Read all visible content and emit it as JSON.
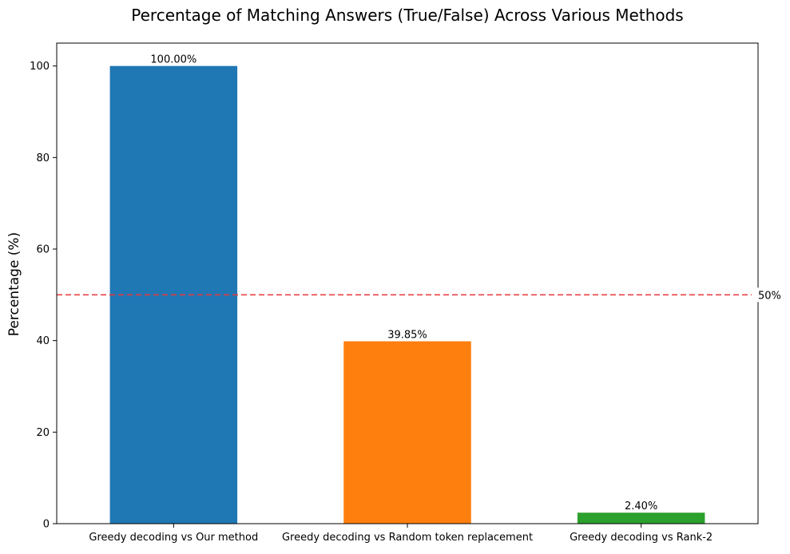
{
  "chart_data": {
    "type": "bar",
    "title": "Percentage of Matching Answers (True/False) Across Various Methods",
    "xlabel": "",
    "ylabel": "Percentage (%)",
    "ylim": [
      0,
      105
    ],
    "yticks": [
      0,
      20,
      40,
      60,
      80,
      100
    ],
    "categories": [
      "Greedy decoding vs Our method",
      "Greedy decoding vs Random token replacement",
      "Greedy decoding vs Rank-2"
    ],
    "values": [
      100.0,
      39.85,
      2.4
    ],
    "data_labels": [
      "100.00%",
      "39.85%",
      "2.40%"
    ],
    "colors": [
      "#1f77b4",
      "#ff7f0e",
      "#2ca02c"
    ],
    "reference_line": {
      "value": 50,
      "label": "50%",
      "color": "#e8383b",
      "style": "dashed"
    },
    "grid": false,
    "legend": "none"
  }
}
